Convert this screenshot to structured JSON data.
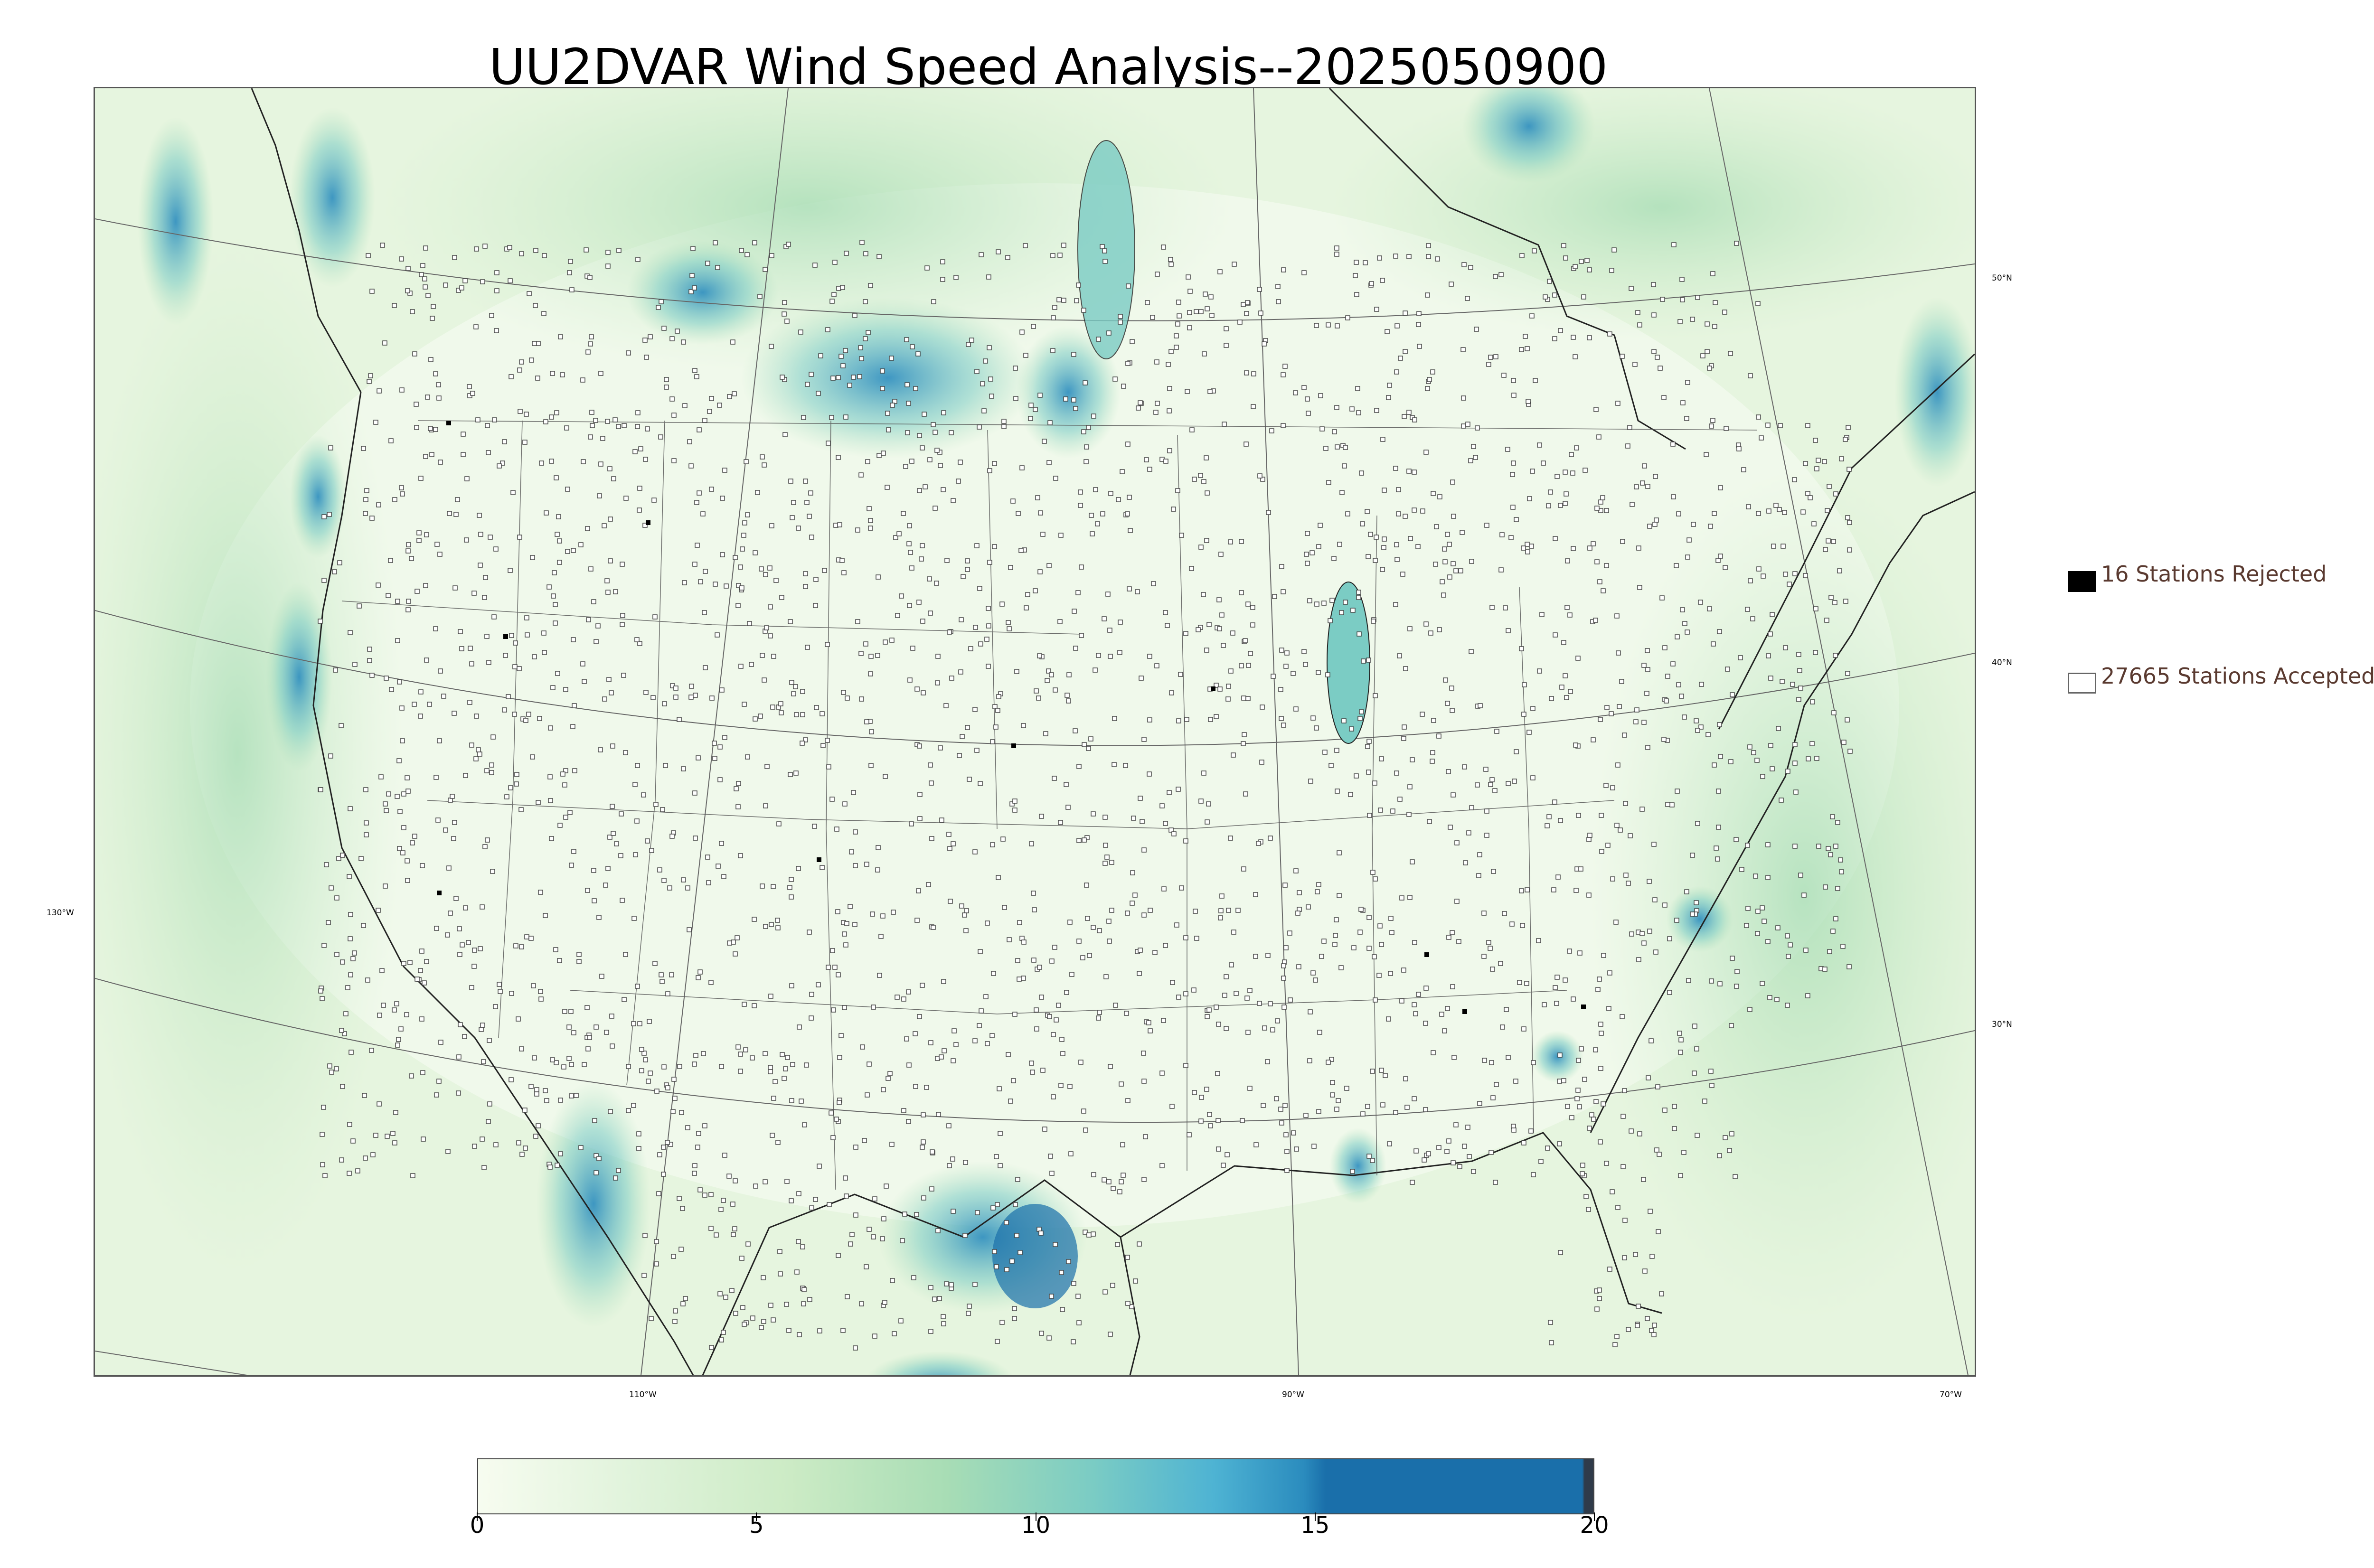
{
  "title": "UU2DVAR Wind Speed Analysis--2025050900",
  "map": {
    "lat_labels": [
      "50°N",
      "40°N",
      "30°N"
    ],
    "lon_labels": [
      "130°W",
      "110°W",
      "90°W",
      "70°W"
    ]
  },
  "legend": {
    "rejected": {
      "label": "16 Stations Rejected",
      "color": "#000000"
    },
    "accepted": {
      "label": "27665 Stations Accepted",
      "color": "#ffffff"
    }
  },
  "colorbar": {
    "min": 0,
    "max": 20,
    "ticks": [
      "0",
      "5",
      "10",
      "15",
      "20"
    ],
    "colors": [
      "#f7fcf0",
      "#e0f3db",
      "#ccebc5",
      "#a8ddb5",
      "#7bccc4",
      "#4eb3d3",
      "#2b8cbe",
      "#1a6faa",
      "#2f3b4a"
    ]
  }
}
